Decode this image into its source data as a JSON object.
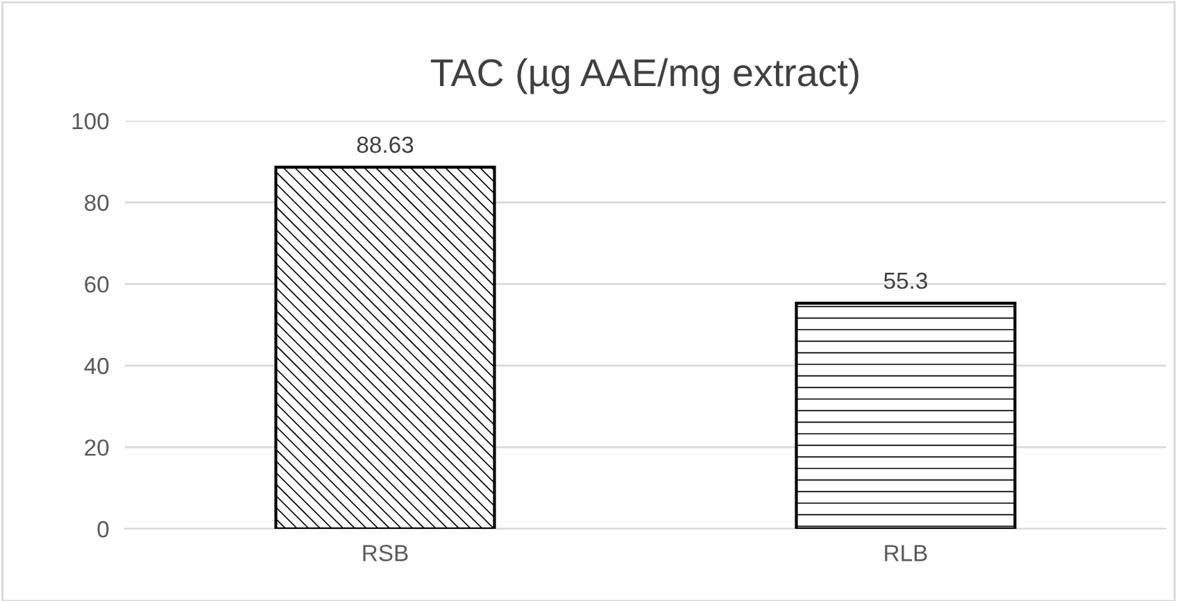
{
  "chart_data": {
    "type": "bar",
    "title": "TAC (µg AAE/mg extract)",
    "categories": [
      "RSB",
      "RLB"
    ],
    "values": [
      88.63,
      55.3
    ],
    "ylim": [
      0,
      100
    ],
    "yticks": [
      0,
      20,
      40,
      60,
      80,
      100
    ],
    "grid": "y",
    "data_labels": true
  }
}
